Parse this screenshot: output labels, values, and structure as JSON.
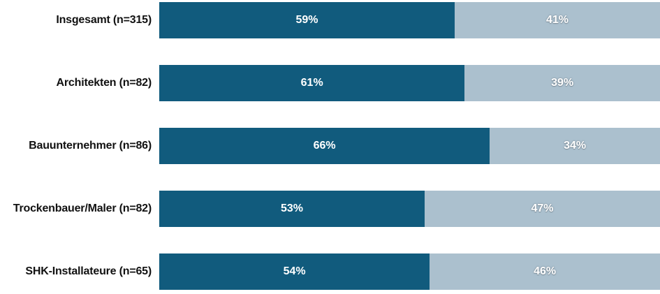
{
  "colors": {
    "background": "#ffffff",
    "primary_segment": "#115B7D",
    "secondary_segment": "#ABC0CE",
    "category_label_text": "#111111",
    "bar_value_text": "#ffffff"
  },
  "chart_data": {
    "type": "bar",
    "orientation": "horizontal",
    "stacked": true,
    "title": "",
    "xlabel": "",
    "ylabel": "",
    "xlim": [
      0,
      100
    ],
    "grid": false,
    "legend": false,
    "value_format": "percent",
    "categories": [
      "Insgesamt (n=315)",
      "Architekten (n=82)",
      "Bauunternehmer (n=86)",
      "Trockenbauer/Maler (n=82)",
      "SHK-Installateure (n=65)"
    ],
    "series": [
      {
        "color": "#115B7D",
        "values": [
          59,
          61,
          66,
          53,
          54
        ],
        "display_labels": [
          "59%",
          "61%",
          "66%",
          "53%",
          "54%"
        ]
      },
      {
        "color": "#ABC0CE",
        "values": [
          41,
          39,
          34,
          47,
          46
        ],
        "display_labels": [
          "41%",
          "39%",
          "34%",
          "47%",
          "46%"
        ]
      }
    ]
  }
}
